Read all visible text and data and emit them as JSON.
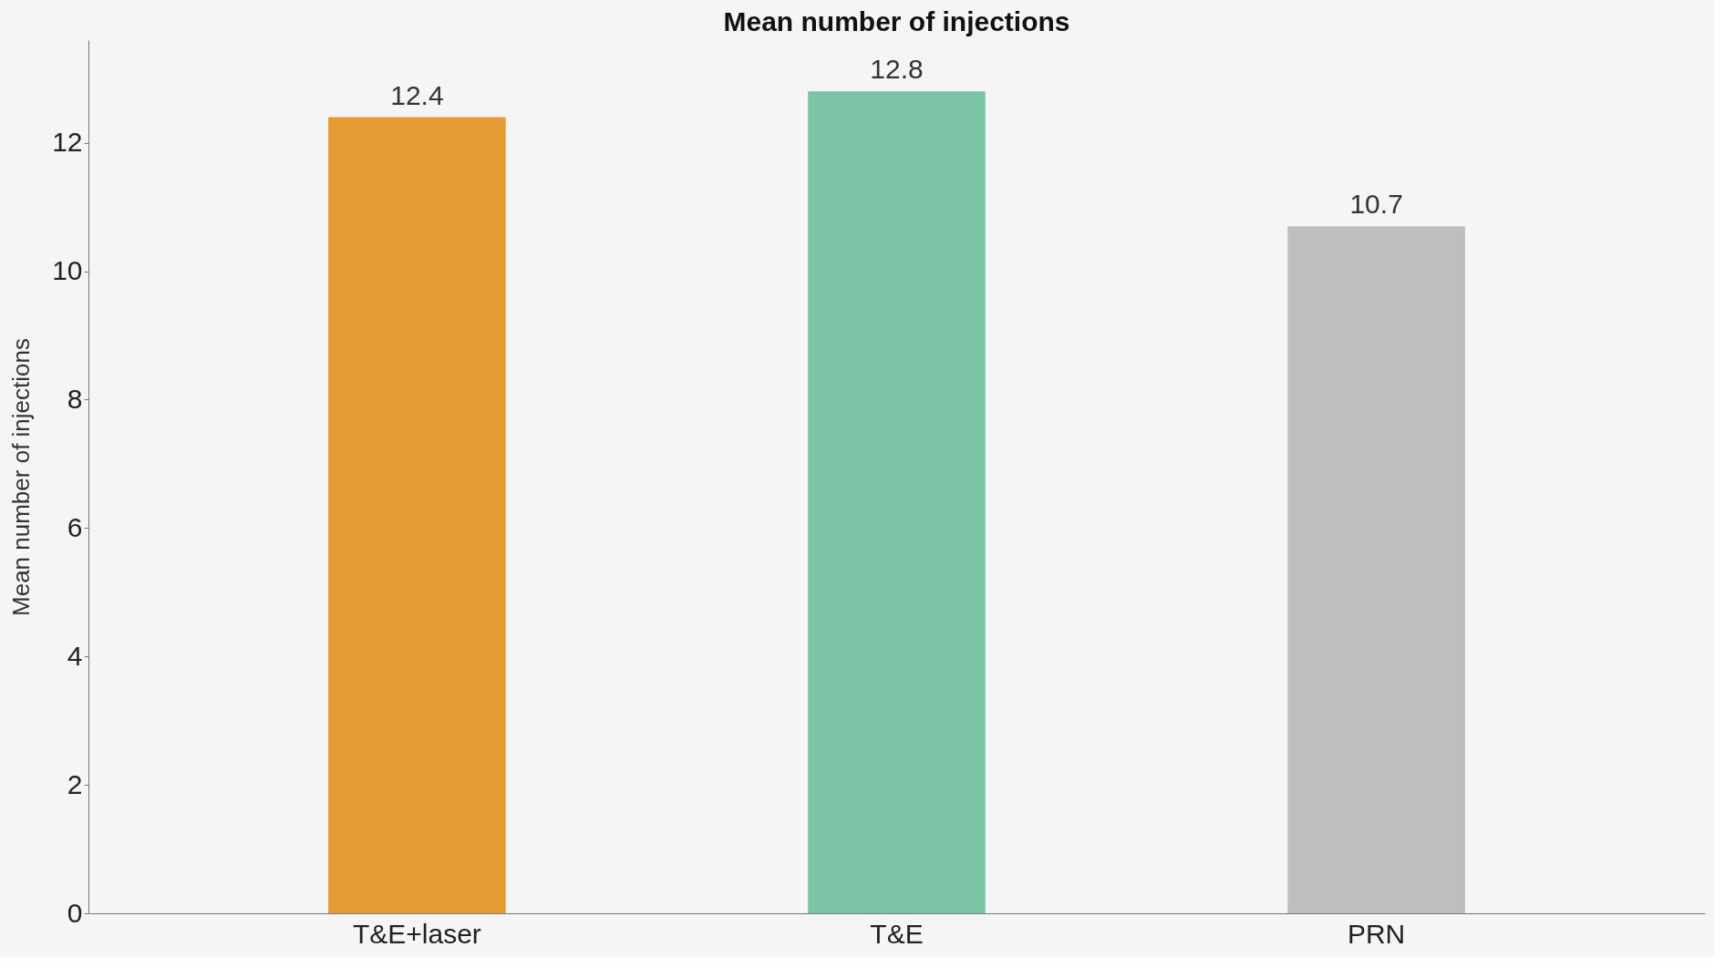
{
  "chart_data": {
    "type": "bar",
    "title": "Mean number of injections",
    "ylabel": "Mean number of injections",
    "categories": [
      "T&E+laser",
      "T&E",
      "PRN"
    ],
    "values": [
      12.4,
      12.8,
      10.7
    ],
    "colors": [
      "#e59c35",
      "#7bc4a6",
      "#bebebe"
    ],
    "ylim": [
      0,
      13.6
    ],
    "yticks": [
      0,
      2,
      4,
      6,
      8,
      10,
      12
    ],
    "grid": false,
    "data_labels": true
  }
}
